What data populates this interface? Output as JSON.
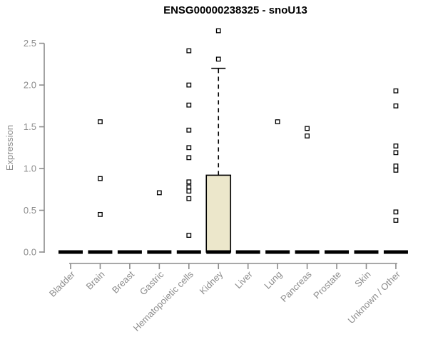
{
  "chart_data": {
    "type": "box",
    "title": "ENSG00000238325 - snoU13",
    "xlabel": "",
    "ylabel": "Expression",
    "ylim": [
      0,
      2.5
    ],
    "yticks": [
      0.0,
      0.5,
      1.0,
      1.5,
      2.0,
      2.5
    ],
    "grid": false,
    "legend": "none",
    "categories": [
      "Bladder",
      "Brain",
      "Breast",
      "Gastric",
      "Hematopoietic cells",
      "Kidney",
      "Liver",
      "Lung",
      "Pancreas",
      "Prostate",
      "Skin",
      "Unknown / Other"
    ],
    "boxes": [
      {
        "category": "Bladder",
        "median": 0,
        "q1": 0,
        "q3": 0,
        "whisker_low": 0,
        "whisker_high": 0,
        "outliers": []
      },
      {
        "category": "Brain",
        "median": 0,
        "q1": 0,
        "q3": 0,
        "whisker_low": 0,
        "whisker_high": 0,
        "outliers": [
          1.56,
          0.88,
          0.45
        ]
      },
      {
        "category": "Breast",
        "median": 0,
        "q1": 0,
        "q3": 0,
        "whisker_low": 0,
        "whisker_high": 0,
        "outliers": []
      },
      {
        "category": "Gastric",
        "median": 0,
        "q1": 0,
        "q3": 0,
        "whisker_low": 0,
        "whisker_high": 0,
        "outliers": [
          0.71
        ]
      },
      {
        "category": "Hematopoietic cells",
        "median": 0,
        "q1": 0,
        "q3": 0,
        "whisker_low": 0,
        "whisker_high": 0,
        "outliers": [
          2.41,
          2.0,
          1.76,
          1.46,
          1.25,
          1.13,
          0.84,
          0.78,
          0.73,
          0.64,
          0.2
        ]
      },
      {
        "category": "Kidney",
        "median": 0,
        "q1": 0,
        "q3": 0.92,
        "whisker_low": 0,
        "whisker_high": 2.2,
        "outliers": [
          2.31,
          2.65
        ]
      },
      {
        "category": "Liver",
        "median": 0,
        "q1": 0,
        "q3": 0,
        "whisker_low": 0,
        "whisker_high": 0,
        "outliers": []
      },
      {
        "category": "Lung",
        "median": 0,
        "q1": 0,
        "q3": 0,
        "whisker_low": 0,
        "whisker_high": 0,
        "outliers": [
          1.56
        ]
      },
      {
        "category": "Pancreas",
        "median": 0,
        "q1": 0,
        "q3": 0,
        "whisker_low": 0,
        "whisker_high": 0,
        "outliers": [
          1.48,
          1.39
        ]
      },
      {
        "category": "Prostate",
        "median": 0,
        "q1": 0,
        "q3": 0,
        "whisker_low": 0,
        "whisker_high": 0,
        "outliers": []
      },
      {
        "category": "Skin",
        "median": 0,
        "q1": 0,
        "q3": 0,
        "whisker_low": 0,
        "whisker_high": 0,
        "outliers": []
      },
      {
        "category": "Unknown / Other",
        "median": 0,
        "q1": 0,
        "q3": 0,
        "whisker_low": 0,
        "whisker_high": 0,
        "outliers": [
          1.93,
          1.75,
          1.27,
          1.19,
          1.03,
          0.98,
          0.48,
          0.38
        ]
      }
    ],
    "colors": {
      "box_fill": "#ece7cb",
      "box_border": "#000000",
      "median": "#000000",
      "whisker": "#000000",
      "outlier_fill": "#ffffff",
      "outlier_border": "#000000",
      "axis": "#8c8c8c",
      "tick_label": "#8c8c8c",
      "title": "#000000",
      "background": "#ffffff"
    }
  }
}
